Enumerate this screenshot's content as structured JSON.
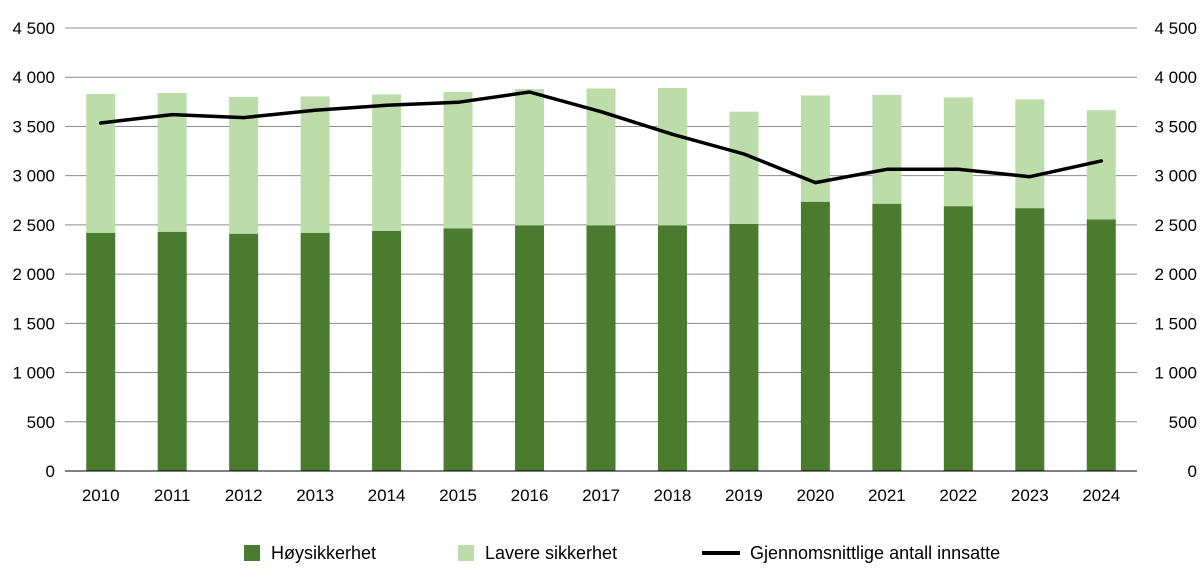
{
  "chart_data": {
    "type": "bar",
    "stacked": true,
    "categories": [
      "2010",
      "2011",
      "2012",
      "2013",
      "2014",
      "2015",
      "2016",
      "2017",
      "2018",
      "2019",
      "2020",
      "2021",
      "2022",
      "2023",
      "2024"
    ],
    "series": [
      {
        "name": "Høysikkerhet",
        "type": "bar",
        "color": "#4a7b2f",
        "values": [
          2420,
          2430,
          2410,
          2420,
          2440,
          2465,
          2495,
          2495,
          2495,
          2510,
          2735,
          2715,
          2690,
          2670,
          2555
        ]
      },
      {
        "name": "Lavere sikkerhet",
        "type": "bar",
        "color": "#bcdcaa",
        "values": [
          1410,
          1410,
          1390,
          1385,
          1385,
          1385,
          1385,
          1390,
          1395,
          1140,
          1080,
          1105,
          1105,
          1105,
          1110
        ]
      },
      {
        "name": "Gjennomsnittlige antall innsatte",
        "type": "line",
        "color": "#000000",
        "values": [
          3535,
          3620,
          3590,
          3665,
          3715,
          3745,
          3850,
          3650,
          3420,
          3220,
          2930,
          3065,
          3065,
          2990,
          3150
        ]
      }
    ],
    "ylim": [
      0,
      4500
    ],
    "y_ticks": [
      {
        "value": 0,
        "label": "0"
      },
      {
        "value": 500,
        "label": "500"
      },
      {
        "value": 1000,
        "label": "1 000"
      },
      {
        "value": 1500,
        "label": "1 500"
      },
      {
        "value": 2000,
        "label": "2 000"
      },
      {
        "value": 2500,
        "label": "2 500"
      },
      {
        "value": 3000,
        "label": "3 000"
      },
      {
        "value": 3500,
        "label": "3 500"
      },
      {
        "value": 4000,
        "label": "4 000"
      },
      {
        "value": 4500,
        "label": "4 500"
      }
    ],
    "secondary_y_axis": true,
    "grid": true,
    "legend_position": "bottom",
    "title": "",
    "xlabel": "",
    "ylabel": ""
  }
}
